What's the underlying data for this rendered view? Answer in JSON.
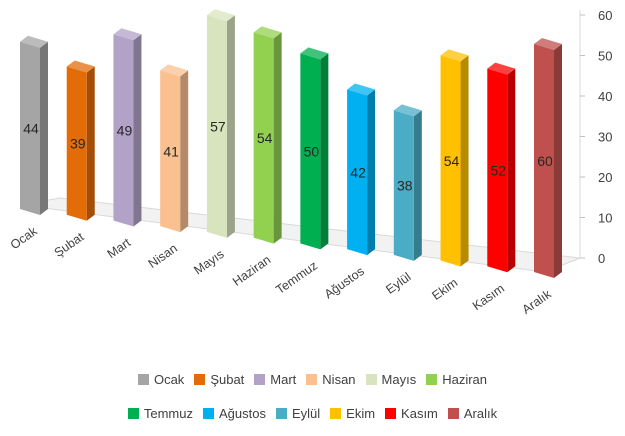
{
  "chart_data": {
    "type": "bar",
    "categories": [
      "Ocak",
      "Şubat",
      "Mart",
      "Nisan",
      "Mayıs",
      "Haziran",
      "Temmuz",
      "Ağustos",
      "Eylül",
      "Ekim",
      "Kasım",
      "Aralık"
    ],
    "values": [
      44,
      39,
      49,
      41,
      57,
      54,
      50,
      42,
      38,
      54,
      52,
      60
    ],
    "colors": [
      "#a5a5a5",
      "#e36c09",
      "#b3a2c7",
      "#fac090",
      "#d7e4bd",
      "#92d050",
      "#00b050",
      "#00b0f0",
      "#4bacc6",
      "#ffc000",
      "#ff0000",
      "#c0504d"
    ],
    "ylim": [
      0,
      60
    ],
    "yticks": [
      "0",
      "10",
      "20",
      "30",
      "40",
      "50",
      "60"
    ],
    "legend_position": "bottom",
    "grid": false
  }
}
